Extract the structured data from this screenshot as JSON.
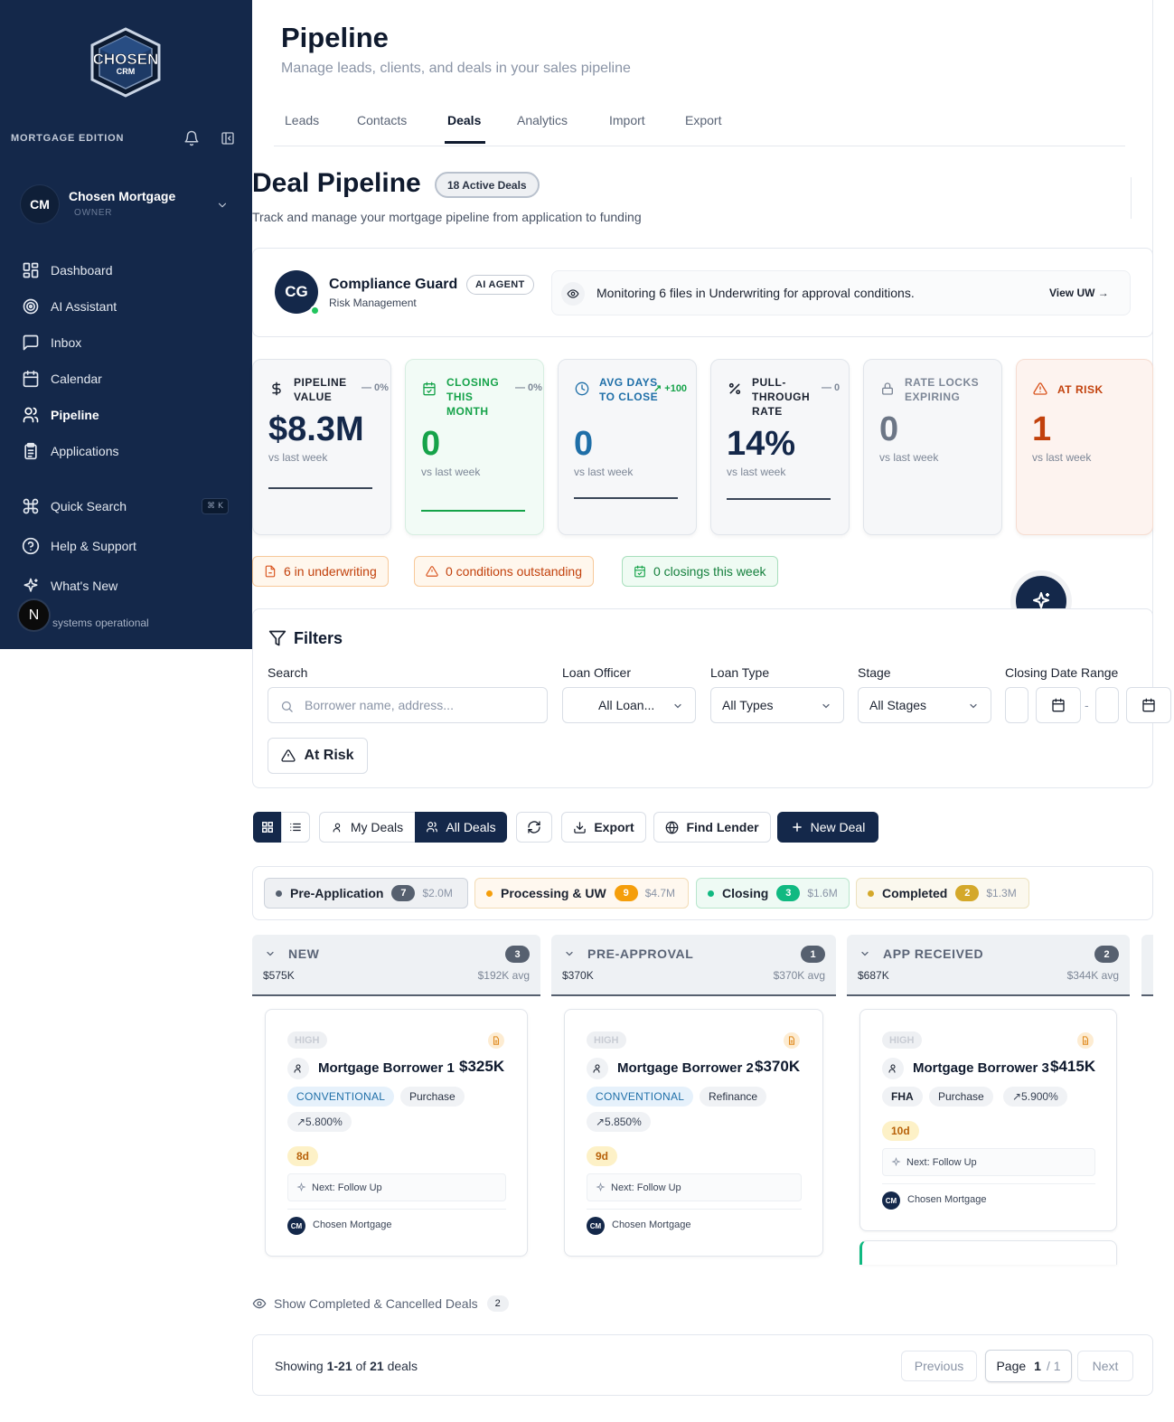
{
  "sidebar": {
    "logo_text_top": "CHOSEN",
    "logo_text_bottom": "CRM",
    "edition": "MORTGAGE EDITION",
    "account": {
      "initials": "CM",
      "name": "Chosen Mortgage",
      "role": "OWNER"
    },
    "nav": [
      {
        "label": "Dashboard",
        "icon": "dashboard-icon"
      },
      {
        "label": "AI Assistant",
        "icon": "ai-assistant-icon"
      },
      {
        "label": "Inbox",
        "icon": "inbox-icon"
      },
      {
        "label": "Calendar",
        "icon": "calendar-icon"
      },
      {
        "label": "Pipeline",
        "icon": "users-icon",
        "active": true
      },
      {
        "label": "Applications",
        "icon": "clipboard-icon"
      }
    ],
    "bottom": [
      {
        "label": "Quick Search",
        "icon": "command-icon",
        "shortcut": "⌘ K"
      },
      {
        "label": "Help & Support",
        "icon": "help-icon"
      },
      {
        "label": "What's New",
        "icon": "sparkle-icon"
      }
    ],
    "status_text": "systems operational",
    "n_badge": "N"
  },
  "header": {
    "title": "Pipeline",
    "subtitle": "Manage leads, clients, and deals in your sales pipeline",
    "tabs": [
      "Leads",
      "Contacts",
      "Deals",
      "Analytics",
      "Import",
      "Export"
    ],
    "active_tab": "Deals"
  },
  "deal_pipeline": {
    "title": "Deal Pipeline",
    "badge": "18 Active Deals",
    "subtitle": "Track and manage your mortgage pipeline from application to funding"
  },
  "agent": {
    "initials": "CG",
    "name": "Compliance Guard",
    "badge": "AI AGENT",
    "role": "Risk Management",
    "message": "Monitoring 6 files in Underwriting for approval conditions.",
    "action": "View UW →"
  },
  "kpis": [
    {
      "label": "PIPELINE VALUE",
      "change": "— 0%",
      "value": "$8.3M",
      "vs": "vs last week",
      "icon": "dollar-icon"
    },
    {
      "label": "CLOSING THIS MONTH",
      "change": "— 0%",
      "value": "0",
      "vs": "vs last week",
      "icon": "calendar-check-icon"
    },
    {
      "label": "AVG DAYS TO CLOSE",
      "change": "↗ +100",
      "value": "0",
      "vs": "vs last week",
      "icon": "clock-icon"
    },
    {
      "label": "PULL-THROUGH RATE",
      "change": "— 0",
      "value": "14%",
      "vs": "vs last week",
      "icon": "percent-icon"
    },
    {
      "label": "RATE LOCKS EXPIRING",
      "change": "",
      "value": "0",
      "vs": "vs last week",
      "icon": "lock-icon"
    },
    {
      "label": "AT RISK",
      "change": "",
      "value": "1",
      "vs": "vs last week",
      "icon": "alert-triangle-icon"
    }
  ],
  "status_pills": [
    {
      "label": "6 in underwriting",
      "icon": "file-icon"
    },
    {
      "label": "0 conditions outstanding",
      "icon": "alert-triangle-icon"
    },
    {
      "label": "0 closings this week",
      "icon": "calendar-check-icon"
    }
  ],
  "filters": {
    "title": "Filters",
    "search_label": "Search",
    "search_placeholder": "Borrower name, address...",
    "loan_officer_label": "Loan Officer",
    "loan_officer_value": "All Loan...",
    "loan_type_label": "Loan Type",
    "loan_type_value": "All Types",
    "stage_label": "Stage",
    "stage_value": "All Stages",
    "date_label": "Closing Date Range",
    "date_sep": "-",
    "at_risk": "At Risk"
  },
  "toolbar": {
    "my_deals": "My Deals",
    "all_deals": "All Deals",
    "export": "Export",
    "find_lender": "Find Lender",
    "new_deal": "New Deal"
  },
  "stages": [
    {
      "name": "Pre-Application",
      "count": "7",
      "amount": "$2.0M",
      "color": "#56606f"
    },
    {
      "name": "Processing & UW",
      "count": "9",
      "amount": "$4.7M",
      "color": "#f59e0b"
    },
    {
      "name": "Closing",
      "count": "3",
      "amount": "$1.6M",
      "color": "#10b981"
    },
    {
      "name": "Completed",
      "count": "2",
      "amount": "$1.3M",
      "color": "#d4a82a"
    }
  ],
  "columns": [
    {
      "name": "NEW",
      "count": "3",
      "amount": "$575K",
      "avg": "$192K avg"
    },
    {
      "name": "PRE-APPROVAL",
      "count": "1",
      "amount": "$370K",
      "avg": "$370K avg"
    },
    {
      "name": "APP RECEIVED",
      "count": "2",
      "amount": "$687K",
      "avg": "$344K avg"
    }
  ],
  "cards": [
    {
      "priority": "HIGH",
      "borrower": "Mortgage Borrower 1",
      "amount": "$325K",
      "loan_type": "CONVENTIONAL",
      "purpose": "Purchase",
      "rate": "↗5.800%",
      "days": "8d",
      "next": "Next: Follow Up",
      "owner_initials": "CM",
      "owner": "Chosen Mortgage"
    },
    {
      "priority": "HIGH",
      "borrower": "Mortgage Borrower 2",
      "amount": "$370K",
      "loan_type": "CONVENTIONAL",
      "purpose": "Refinance",
      "rate": "↗5.850%",
      "days": "9d",
      "next": "Next: Follow Up",
      "owner_initials": "CM",
      "owner": "Chosen Mortgage"
    },
    {
      "priority": "HIGH",
      "borrower": "Mortgage Borrower 3",
      "amount": "$415K",
      "loan_type": "FHA",
      "purpose": "Purchase",
      "rate": "↗5.900%",
      "days": "10d",
      "next": "Next: Follow Up",
      "owner_initials": "CM",
      "owner": "Chosen Mortgage"
    }
  ],
  "show_completed": {
    "label": "Show Completed & Cancelled Deals",
    "count": "2"
  },
  "pagination": {
    "showing": "Showing",
    "range": "1-21",
    "of": "of",
    "total": "21",
    "unit": "deals",
    "previous": "Previous",
    "page_label": "Page",
    "page": "1",
    "page_total": "/ 1",
    "next": "Next"
  }
}
